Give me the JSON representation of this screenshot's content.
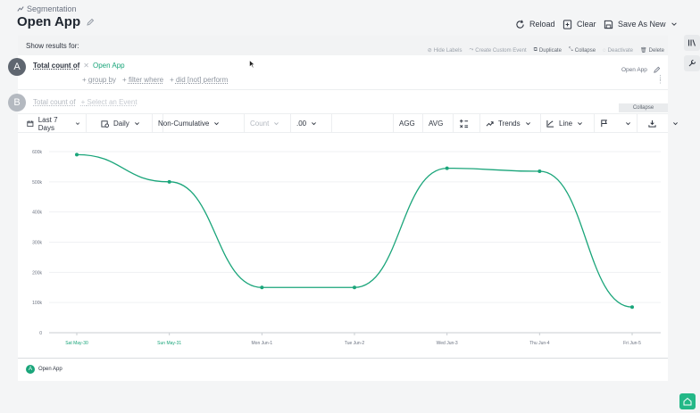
{
  "header": {
    "breadcrumb": "Segmentation",
    "title": "Open App",
    "reload_label": "Reload",
    "clear_label": "Clear",
    "save_label": "Save As New"
  },
  "showbar": {
    "label": "Show results for:",
    "buttons": [
      "Hide Labels",
      "Create Custom Event",
      "Duplicate",
      "Collapse",
      "Deactivate",
      "Delete"
    ]
  },
  "event_a": {
    "badge": "A",
    "total_label": "Total count of",
    "event_name": "Open App",
    "group_by": "group by",
    "filter_where": "filter where",
    "did_not_perform": "did [not] perform",
    "right_label": "Open App"
  },
  "event_b": {
    "badge": "B",
    "total_label": "Total count of",
    "placeholder": "Select an Event"
  },
  "collapse_tag": "Collapse",
  "controls": {
    "date_range": "Last 7 Days",
    "interval": "Daily",
    "cumulative": "Non-Cumulative",
    "count": "Count",
    "decimals": ".00",
    "agg": "AGG",
    "avg": "AVG",
    "trends": "Trends",
    "line": "Line"
  },
  "colors": {
    "accent": "#1aa57a",
    "badge_gray": "#9aa1aa"
  },
  "chart_data": {
    "type": "line",
    "categories": [
      "Sat May-30",
      "Sun May-31",
      "Mon Jun-1",
      "Tue Jun-2",
      "Wed Jun-3",
      "Thu Jun-4",
      "Fri Jun-5"
    ],
    "series": [
      {
        "name": "Open App",
        "values": [
          590000,
          500000,
          150000,
          150000,
          545000,
          535000,
          85000
        ]
      }
    ],
    "y_ticks": [
      "0",
      "100k",
      "200k",
      "300k",
      "400k",
      "500k",
      "600k"
    ],
    "ylim": [
      0,
      600000
    ],
    "grid": true,
    "legend_position": "bottom-left"
  },
  "legend": {
    "badge": "A",
    "label": "Open App"
  }
}
